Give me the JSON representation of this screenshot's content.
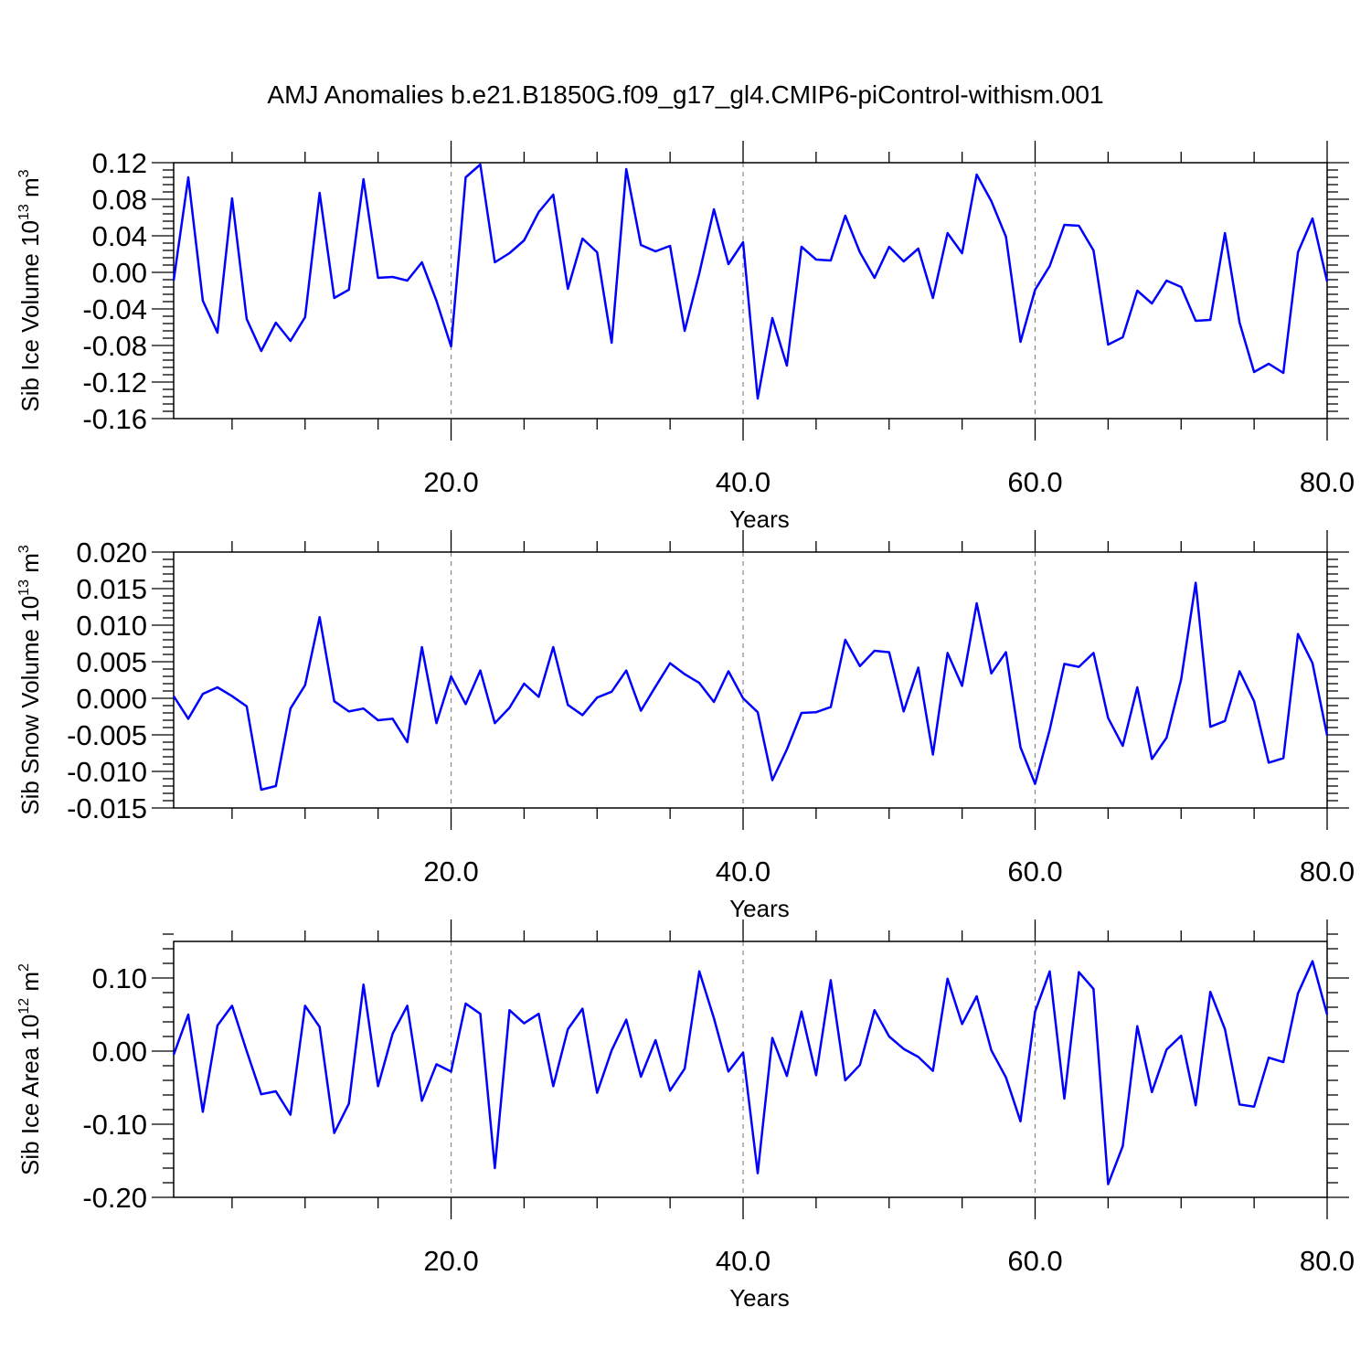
{
  "figure": {
    "title": "AMJ Anomalies b.e21.B1850G.f09_g17_gl4.CMIP6-piControl-withism.001"
  },
  "colors": {
    "line": "#0000ff",
    "axis": "#000000",
    "reference_line": "#888888"
  },
  "chart_data": [
    {
      "type": "line",
      "ylabel": {
        "main": "Sib Ice Volume 10",
        "sup": "13",
        "unit": " m",
        "unit_sup": "3"
      },
      "xlabel": "Years",
      "xlim": [
        1,
        80
      ],
      "ylim": [
        -0.16,
        0.12
      ],
      "xticks": [
        20,
        40,
        60,
        80
      ],
      "xtick_labels": [
        "20.0",
        "40.0",
        "60.0",
        "80.0"
      ],
      "yticks": [
        -0.16,
        -0.12,
        -0.08,
        -0.04,
        0.0,
        0.04,
        0.08,
        0.12
      ],
      "ytick_labels": [
        "-0.16",
        "-0.12",
        "-0.08",
        "-0.04",
        "0.00",
        "0.04",
        "0.08",
        "0.12"
      ],
      "reference_lines_x": [
        20,
        40,
        60
      ],
      "x": [
        1,
        2,
        3,
        4,
        5,
        6,
        7,
        8,
        9,
        10,
        11,
        12,
        13,
        14,
        15,
        16,
        17,
        18,
        19,
        20,
        21,
        22,
        23,
        24,
        25,
        26,
        27,
        28,
        29,
        30,
        31,
        32,
        33,
        34,
        35,
        36,
        37,
        38,
        39,
        40,
        41,
        42,
        43,
        44,
        45,
        46,
        47,
        48,
        49,
        50,
        51,
        52,
        53,
        54,
        55,
        56,
        57,
        58,
        59,
        60,
        61,
        62,
        63,
        64,
        65,
        66,
        67,
        68,
        69,
        70,
        71,
        72,
        73,
        74,
        75,
        76,
        77,
        78,
        79,
        80
      ],
      "values": [
        -0.009,
        0.104,
        -0.031,
        -0.066,
        0.081,
        -0.051,
        -0.086,
        -0.055,
        -0.075,
        -0.049,
        0.087,
        -0.028,
        -0.019,
        0.102,
        -0.006,
        -0.005,
        -0.009,
        0.011,
        -0.031,
        -0.081,
        0.104,
        0.118,
        0.011,
        0.021,
        0.035,
        0.066,
        0.085,
        -0.018,
        0.037,
        0.022,
        -0.077,
        0.113,
        0.03,
        0.023,
        0.029,
        -0.064,
        -0.001,
        0.069,
        0.009,
        0.033,
        -0.138,
        -0.05,
        -0.102,
        0.028,
        0.014,
        0.013,
        0.062,
        0.022,
        -0.006,
        0.028,
        0.012,
        0.026,
        -0.028,
        0.043,
        0.021,
        0.107,
        0.078,
        0.039,
        -0.076,
        -0.019,
        0.007,
        0.052,
        0.051,
        0.024,
        -0.079,
        -0.071,
        -0.02,
        -0.034,
        -0.009,
        -0.016,
        -0.053,
        -0.052,
        0.043,
        -0.055,
        -0.109,
        -0.1,
        -0.11,
        0.022,
        0.059,
        -0.01
      ]
    },
    {
      "type": "line",
      "ylabel": {
        "main": "Sib Snow Volume 10",
        "sup": "13",
        "unit": " m",
        "unit_sup": "3"
      },
      "xlabel": "Years",
      "xlim": [
        1,
        80
      ],
      "ylim": [
        -0.015,
        0.02
      ],
      "xticks": [
        20,
        40,
        60,
        80
      ],
      "xtick_labels": [
        "20.0",
        "40.0",
        "60.0",
        "80.0"
      ],
      "yticks": [
        -0.015,
        -0.01,
        -0.005,
        0.0,
        0.005,
        0.01,
        0.015,
        0.02
      ],
      "ytick_labels": [
        "-0.015",
        "-0.010",
        "-0.005",
        "0.000",
        "0.005",
        "0.010",
        "0.015",
        "0.020"
      ],
      "reference_lines_x": [
        20,
        40,
        60
      ],
      "x": [
        1,
        2,
        3,
        4,
        5,
        6,
        7,
        8,
        9,
        10,
        11,
        12,
        13,
        14,
        15,
        16,
        17,
        18,
        19,
        20,
        21,
        22,
        23,
        24,
        25,
        26,
        27,
        28,
        29,
        30,
        31,
        32,
        33,
        34,
        35,
        36,
        37,
        38,
        39,
        40,
        41,
        42,
        43,
        44,
        45,
        46,
        47,
        48,
        49,
        50,
        51,
        52,
        53,
        54,
        55,
        56,
        57,
        58,
        59,
        60,
        61,
        62,
        63,
        64,
        65,
        66,
        67,
        68,
        69,
        70,
        71,
        72,
        73,
        74,
        75,
        76,
        77,
        78,
        79,
        80
      ],
      "values": [
        0.0003,
        -0.0028,
        0.0006,
        0.0015,
        0.0003,
        -0.0011,
        -0.0125,
        -0.012,
        -0.0014,
        0.0018,
        0.0111,
        -0.0004,
        -0.0018,
        -0.0014,
        -0.003,
        -0.0028,
        -0.006,
        0.007,
        -0.0034,
        0.003,
        -0.0008,
        0.0038,
        -0.0034,
        -0.0013,
        0.002,
        0.0002,
        0.007,
        -0.0009,
        -0.0023,
        0.0001,
        0.0009,
        0.0038,
        -0.0017,
        0.0016,
        0.0048,
        0.0033,
        0.0021,
        -0.0005,
        0.0037,
        0.0,
        -0.0019,
        -0.0112,
        -0.007,
        -0.002,
        -0.0019,
        -0.0012,
        0.008,
        0.0044,
        0.0065,
        0.0063,
        -0.0018,
        0.0042,
        -0.0077,
        0.0062,
        0.0017,
        0.013,
        0.0034,
        0.0063,
        -0.0067,
        -0.0117,
        -0.0043,
        0.0047,
        0.0043,
        0.0062,
        -0.0027,
        -0.0065,
        0.0015,
        -0.0083,
        -0.0054,
        0.0026,
        0.0158,
        -0.0039,
        -0.0031,
        0.0037,
        -0.0004,
        -0.0088,
        -0.0082,
        0.0088,
        0.0048,
        -0.0051
      ]
    },
    {
      "type": "line",
      "ylabel": {
        "main": "Sib Ice Area 10",
        "sup": "12",
        "unit": " m",
        "unit_sup": "2"
      },
      "xlabel": "Years",
      "xlim": [
        1,
        80
      ],
      "ylim": [
        -0.2,
        0.15
      ],
      "xticks": [
        20,
        40,
        60,
        80
      ],
      "xtick_labels": [
        "20.0",
        "40.0",
        "60.0",
        "80.0"
      ],
      "yticks": [
        -0.2,
        -0.1,
        0.0,
        0.1
      ],
      "ytick_labels": [
        "-0.20",
        "-0.10",
        "0.00",
        "0.10"
      ],
      "reference_lines_x": [
        20,
        40,
        60
      ],
      "x": [
        1,
        2,
        3,
        4,
        5,
        6,
        7,
        8,
        9,
        10,
        11,
        12,
        13,
        14,
        15,
        16,
        17,
        18,
        19,
        20,
        21,
        22,
        23,
        24,
        25,
        26,
        27,
        28,
        29,
        30,
        31,
        32,
        33,
        34,
        35,
        36,
        37,
        38,
        39,
        40,
        41,
        42,
        43,
        44,
        45,
        46,
        47,
        48,
        49,
        50,
        51,
        52,
        53,
        54,
        55,
        56,
        57,
        58,
        59,
        60,
        61,
        62,
        63,
        64,
        65,
        66,
        67,
        68,
        69,
        70,
        71,
        72,
        73,
        74,
        75,
        76,
        77,
        78,
        79,
        80
      ],
      "values": [
        -0.005,
        0.05,
        -0.083,
        0.035,
        0.062,
        0.0,
        -0.059,
        -0.055,
        -0.087,
        0.062,
        0.033,
        -0.112,
        -0.072,
        0.091,
        -0.048,
        0.024,
        0.062,
        -0.068,
        -0.018,
        -0.028,
        0.065,
        0.051,
        -0.16,
        0.056,
        0.038,
        0.051,
        -0.048,
        0.03,
        0.058,
        -0.057,
        0.001,
        0.043,
        -0.035,
        0.015,
        -0.054,
        -0.024,
        0.109,
        0.045,
        -0.028,
        -0.002,
        -0.167,
        0.018,
        -0.034,
        0.054,
        -0.033,
        0.097,
        -0.04,
        -0.019,
        0.056,
        0.02,
        0.003,
        -0.008,
        -0.027,
        0.099,
        0.037,
        0.075,
        0.001,
        -0.036,
        -0.096,
        0.054,
        0.109,
        -0.065,
        0.108,
        0.085,
        -0.182,
        -0.13,
        0.034,
        -0.056,
        0.002,
        0.021,
        -0.074,
        0.081,
        0.03,
        -0.073,
        -0.076,
        -0.009,
        -0.015,
        0.079,
        0.123,
        0.05
      ]
    }
  ]
}
